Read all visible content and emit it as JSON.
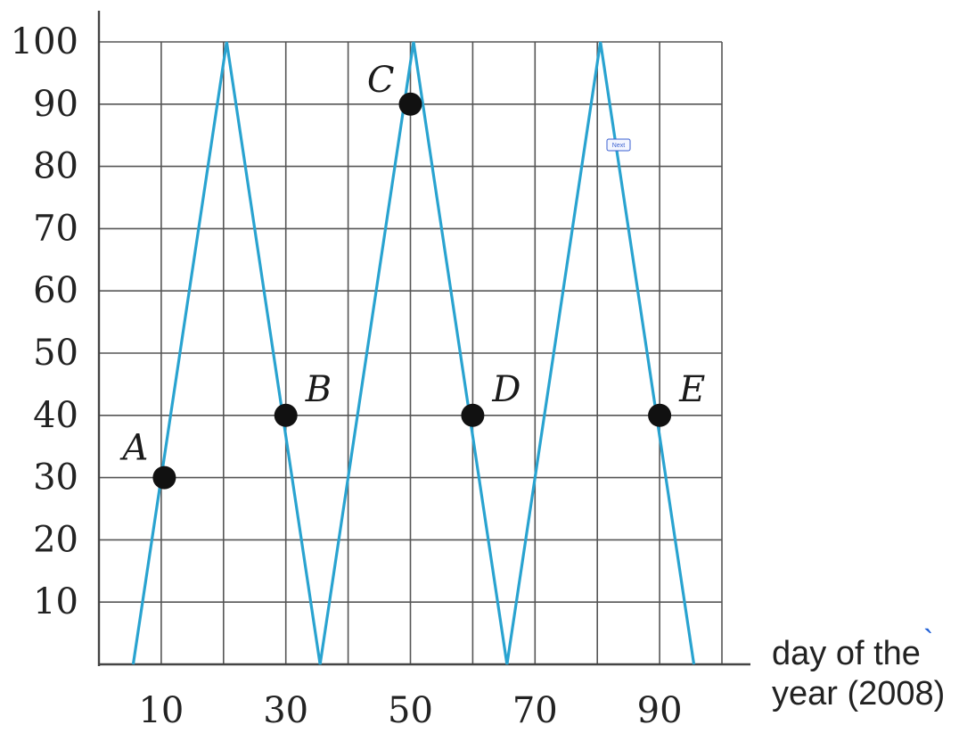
{
  "chart_data": {
    "type": "line",
    "title": "",
    "xlabel": "day of the year (2008)",
    "xlabel_lines": [
      "day of the",
      "year (2008)"
    ],
    "xlabel_mark": "`",
    "ylabel": "",
    "xlim": [
      0,
      100
    ],
    "ylim": [
      0,
      100
    ],
    "grid": true,
    "x_ticks": [
      10,
      30,
      50,
      70,
      90
    ],
    "y_ticks": [
      10,
      20,
      30,
      40,
      50,
      60,
      70,
      80,
      90,
      100
    ],
    "series": [
      {
        "color": "#29a3d0",
        "x": [
          5.5,
          20.5,
          35.5,
          50.5,
          65.5,
          80.5,
          95.5
        ],
        "y": [
          0,
          100,
          0,
          100,
          0,
          100,
          0
        ]
      }
    ],
    "points": [
      {
        "label": "A",
        "x": 10.5,
        "y": 30
      },
      {
        "label": "B",
        "x": 30,
        "y": 40
      },
      {
        "label": "C",
        "x": 50,
        "y": 90
      },
      {
        "label": "D",
        "x": 60,
        "y": 40
      },
      {
        "label": "E",
        "x": 90,
        "y": 40
      }
    ],
    "annotation": "Next"
  }
}
